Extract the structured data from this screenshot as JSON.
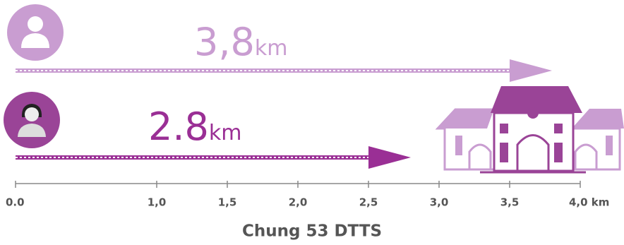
{
  "chart_data": {
    "type": "arrow",
    "title": "Chung 53 DTTS",
    "values": [
      3.8,
      2.8
    ],
    "value_labels": [
      "3,8",
      "2.8"
    ],
    "unit": "km",
    "colors": [
      "#c99dd1",
      "#9a2f95"
    ],
    "xlim": [
      0,
      4
    ],
    "xticks": [
      {
        "value": 0,
        "label": "0.0"
      },
      {
        "value": 1,
        "label": "1,0"
      },
      {
        "value": 1.5,
        "label": "1,5"
      },
      {
        "value": 2,
        "label": "2,0"
      },
      {
        "value": 2.5,
        "label": "2,5"
      },
      {
        "value": 3,
        "label": "3,0"
      },
      {
        "value": 3.5,
        "label": "3,5"
      },
      {
        "value": 4,
        "label": "4,0 km"
      }
    ]
  }
}
